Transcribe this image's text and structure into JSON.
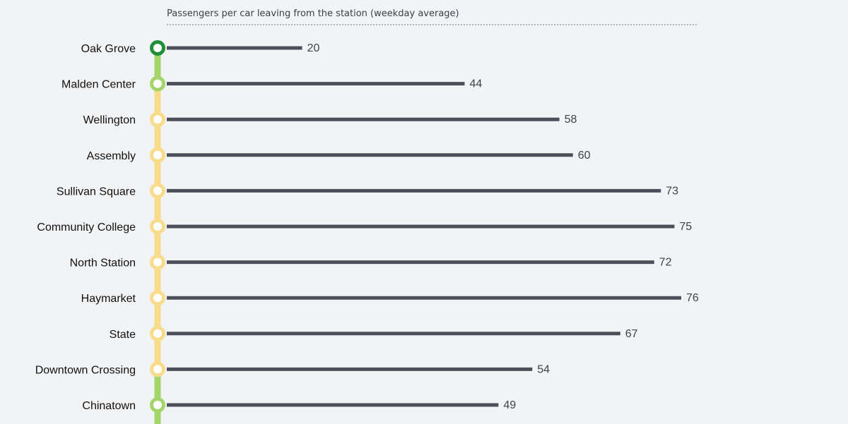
{
  "chart_data": {
    "type": "bar",
    "orientation": "horizontal",
    "title": "Passengers per car leaving from the station (weekday average)",
    "categories": [
      "Oak Grove",
      "Malden Center",
      "Wellington",
      "Assembly",
      "Sullivan Square",
      "Community College",
      "North Station",
      "Haymarket",
      "State",
      "Downtown Crossing",
      "Chinatown"
    ],
    "values": [
      20,
      44,
      58,
      60,
      73,
      75,
      72,
      76,
      67,
      54,
      49
    ],
    "data_labels": [
      "20",
      "44",
      "58",
      "60",
      "73",
      "75",
      "72",
      "76",
      "67",
      "54",
      "49"
    ],
    "xlim": [
      0,
      76
    ],
    "grid": false,
    "legend": "none",
    "marker_colors": [
      "#1f8f3a",
      "#a3d56b",
      "#f8dc8c",
      "#f8dc8c",
      "#f8dc8c",
      "#f8dc8c",
      "#f8dc8c",
      "#f8dc8c",
      "#f8dc8c",
      "#f8dc8c",
      "#a3d56b"
    ],
    "line_segment_colors": [
      "#1f8f3a",
      "#a3d56b",
      "#f8dc8c",
      "#f8dc8c",
      "#f8dc8c",
      "#f8dc8c",
      "#f8dc8c",
      "#f8dc8c",
      "#f8dc8c",
      "#f8dc8c",
      "#a3d56b"
    ],
    "bar_color": "#4a4f59",
    "background": "#f2f3f5"
  }
}
